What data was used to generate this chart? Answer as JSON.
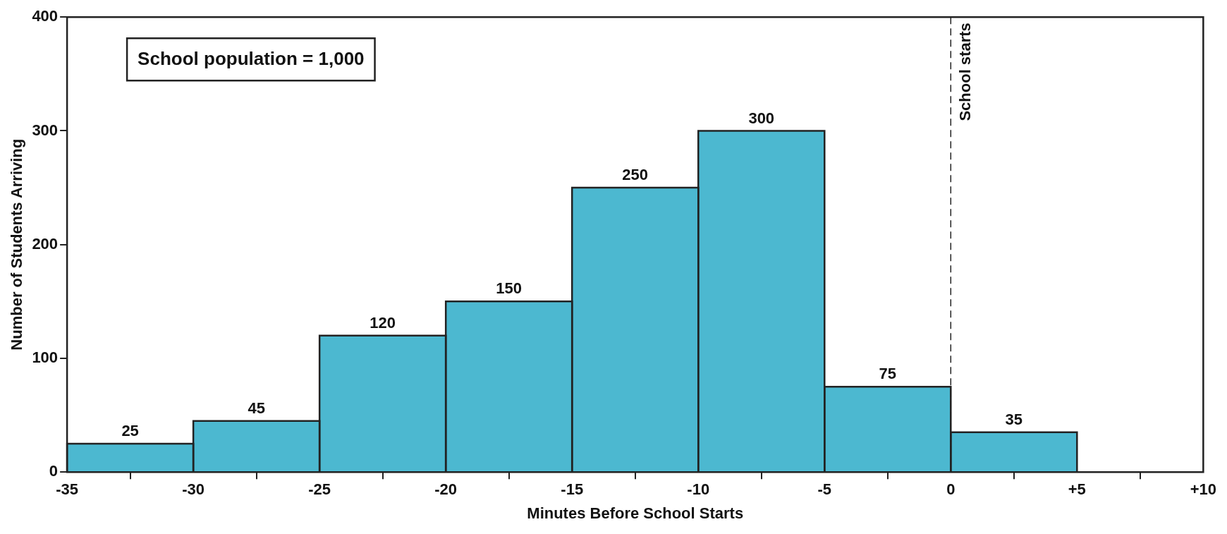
{
  "chart_data": {
    "type": "histogram",
    "xlabel": "Minutes Before School Starts",
    "ylabel": "Number of Students Arriving",
    "bins": [
      -35,
      -30,
      -25,
      -20,
      -15,
      -10,
      -5,
      0,
      5
    ],
    "values": [
      25,
      45,
      120,
      150,
      250,
      300,
      75,
      35
    ],
    "color": "#4cb8d0",
    "data_labels": true,
    "xlim": [
      -35,
      10
    ],
    "xticks": [
      -35,
      -30,
      -25,
      -20,
      -15,
      -10,
      -5,
      0,
      {
        "value": 5,
        "label": "+5"
      },
      {
        "value": 10,
        "label": "+10"
      }
    ],
    "ylim": [
      0,
      400
    ],
    "yticks": [
      0,
      100,
      200,
      300,
      400
    ],
    "grid": false,
    "legend": false,
    "ref_lines": [
      {
        "axis": "x",
        "value": 0,
        "label": "School starts",
        "line_style": "dashed",
        "color": "#222222"
      }
    ],
    "annotations": [
      "School population = 1,000"
    ]
  }
}
